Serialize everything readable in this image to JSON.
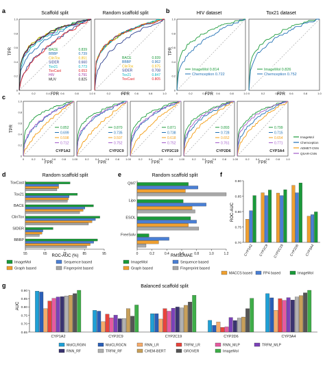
{
  "header_strip": "",
  "panels": {
    "a": {
      "letter": "a",
      "plots": [
        {
          "title": "Scaffold split",
          "xlabel": "FPR",
          "ylabel": "TPR",
          "legend": [
            {
              "name": "BACE",
              "value": "0.839",
              "color": "#1a9a3a"
            },
            {
              "name": "BBBP",
              "value": "0.739",
              "color": "#1f6fb4"
            },
            {
              "name": "ClinTox",
              "value": "0.851",
              "color": "#ecb400"
            },
            {
              "name": "SIDER",
              "value": "0.660",
              "color": "#2d3f8f"
            },
            {
              "name": "Tox21",
              "value": "0.773",
              "color": "#0ab4c2"
            },
            {
              "name": "ToxCast",
              "value": "0.653",
              "color": "#e0242a"
            },
            {
              "name": "HIV",
              "value": "0.791",
              "color": "#9a2ca0"
            },
            {
              "name": "MUV",
              "value": "0.825",
              "color": "#222222"
            }
          ]
        },
        {
          "title": "Random scaffold split",
          "xlabel": "FPR",
          "ylabel": "",
          "legend": [
            {
              "name": "BACE",
              "value": "0.939",
              "color": "#1a9a3a"
            },
            {
              "name": "BBBP",
              "value": "0.962",
              "color": "#1f6fb4"
            },
            {
              "name": "ClinTox",
              "value": "0.975",
              "color": "#ecb400"
            },
            {
              "name": "SIDER",
              "value": "0.708",
              "color": "#2d3f8f"
            },
            {
              "name": "Tox21",
              "value": "0.847",
              "color": "#0ab4c2"
            },
            {
              "name": "ToxCast",
              "value": "0.805",
              "color": "#e0242a"
            }
          ]
        }
      ]
    },
    "b": {
      "letter": "b",
      "plots": [
        {
          "title": "HIV dataset",
          "xlabel": "FPR",
          "ylabel": "TPR",
          "legend": [
            {
              "name": "ImageMol",
              "value": "0.814",
              "color": "#1a9a3a"
            },
            {
              "name": "Chemception",
              "value": "0.722",
              "color": "#1f6fb4"
            }
          ]
        },
        {
          "title": "Tox21 dataset",
          "xlabel": "FPR",
          "ylabel": "",
          "legend": [
            {
              "name": "ImageMol",
              "value": "0.826",
              "color": "#1a9a3a"
            },
            {
              "name": "Chemception",
              "value": "0.752",
              "color": "#1f6fb4"
            }
          ]
        }
      ]
    },
    "c": {
      "letter": "c",
      "ylabel": "TPR",
      "plots": [
        {
          "name": "CYP1A2",
          "xlabel": "FPR",
          "values": [
            "0.852",
            "0.699",
            "0.598",
            "0.712"
          ]
        },
        {
          "name": "CYP2C9",
          "xlabel": "FPR",
          "values": [
            "0.870",
            "0.735",
            "0.597",
            "0.752"
          ]
        },
        {
          "name": "CYP2C19",
          "xlabel": "FPR",
          "values": [
            "0.871",
            "0.738",
            "0.618",
            "0.752"
          ]
        },
        {
          "name": "CYP2D6",
          "xlabel": "FPR",
          "values": [
            "0.893",
            "0.728",
            "0.652",
            "0.761"
          ]
        },
        {
          "name": "CYP3A4",
          "xlabel": "FPR",
          "values": [
            "0.799",
            "0.715",
            "0.654",
            "0.771"
          ]
        }
      ],
      "legend": [
        {
          "name": "ImageMol",
          "color": "#1a9a3a"
        },
        {
          "name": "Chemception",
          "color": "#1f6fb4"
        },
        {
          "name": "ADMET-CNN",
          "color": "#f39c12"
        },
        {
          "name": "QSAR-CNN",
          "color": "#a05ac8"
        }
      ]
    }
  },
  "chart_data": [
    {
      "panel": "d",
      "type": "bar",
      "orientation": "horizontal",
      "title": "Random scaffold split",
      "xlabel": "ROC-AUC (%)",
      "xlim": [
        55,
        100
      ],
      "xticks": [
        "55",
        "65",
        "75",
        "85",
        "95"
      ],
      "categories": [
        "ToxCast",
        "Tox21",
        "BACE",
        "ClinTox",
        "SIDER",
        "BBBP"
      ],
      "series": [
        {
          "name": "ImageMol",
          "color": "#1a9a3a",
          "values": [
            80.5,
            84.7,
            93.9,
            97.5,
            70.8,
            96.2
          ]
        },
        {
          "name": "Sequence based",
          "color": "#4a7fd4",
          "values": [
            74,
            80,
            89,
            95,
            65,
            94
          ]
        },
        {
          "name": "Graph based",
          "color": "#f0a030",
          "values": [
            74,
            79.5,
            88,
            93,
            64.5,
            92
          ]
        },
        {
          "name": "Fingerprint based",
          "color": "#a8a8a8",
          "values": [
            73,
            79,
            86,
            91,
            63,
            90
          ]
        }
      ],
      "legend": [
        "ImageMol",
        "Sequence based",
        "Graph based",
        "Fingerprint based"
      ]
    },
    {
      "panel": "e",
      "type": "bar",
      "orientation": "horizontal",
      "title": "Random scaffold split",
      "xlabel": "RMSE/MAE",
      "xlim": [
        0,
        1.2
      ],
      "xticks": [
        "0",
        "0.2",
        "0.4",
        "0.6",
        "0.8",
        "1.0",
        "1.2"
      ],
      "categories": [
        "QM7",
        "Lipo",
        "ESOL",
        "FreeSolv"
      ],
      "series": [
        {
          "name": "ImageMol",
          "color": "#1a9a3a",
          "values": [
            0.69,
            0.62,
            0.72,
            0.16
          ]
        },
        {
          "name": "Sequence based",
          "color": "#4a7fd4",
          "values": [
            0.82,
            0.93,
            0.8,
            0.43
          ]
        },
        {
          "name": "Graph based",
          "color": "#f0a030",
          "values": [
            0.65,
            0.74,
            0.69,
            0.29
          ]
        },
        {
          "name": "Fingerprint based",
          "color": "#a8a8a8",
          "values": [
            1.2,
            0.78,
            0.83,
            0.12
          ]
        }
      ],
      "legend": [
        "ImageMol",
        "Sequence based",
        "Graph based",
        "Fingerprint based"
      ]
    },
    {
      "panel": "f",
      "type": "bar",
      "ylabel": "ROC-AUC",
      "ylim": [
        0.7,
        0.9
      ],
      "yticks": [
        "0.70",
        "0.75",
        "0.80",
        "0.85",
        "0.90"
      ],
      "categories": [
        "CYP1A2",
        "CYP2C9",
        "CYP2C19",
        "CYP2D6",
        "CYP3A4"
      ],
      "series": [
        {
          "name": "MACCS based",
          "color": "#f0a030",
          "values": [
            0.775,
            0.861,
            0.86,
            0.885,
            0.785
          ]
        },
        {
          "name": "FP4 based",
          "color": "#4a7fd4",
          "values": [
            0.803,
            0.852,
            0.852,
            0.861,
            0.79
          ]
        },
        {
          "name": "ImageMol",
          "color": "#1a9a3a",
          "values": [
            0.852,
            0.87,
            0.871,
            0.893,
            0.799
          ]
        }
      ],
      "legend": [
        "MACCS based",
        "FP4 based",
        "ImageMol"
      ]
    },
    {
      "panel": "g",
      "type": "bar",
      "title": "Balanced scaffold split",
      "ylabel": "AUC",
      "ylim": [
        0.65,
        0.9
      ],
      "yticks": [
        "0.65",
        "0.70",
        "0.75",
        "0.80",
        "0.85",
        "0.90"
      ],
      "categories": [
        "CYP1A2",
        "CYP2C9",
        "CYP2C19",
        "CYP2D6",
        "CYP3A4"
      ],
      "series": [
        {
          "name": "MolCLRGIN",
          "color": "#1fa0d6",
          "values": [
            0.895,
            0.78,
            0.76,
            0.72,
            0.88
          ]
        },
        {
          "name": "MolCLRGCN",
          "color": "#2a5fb8",
          "values": [
            0.89,
            0.775,
            0.76,
            0.69,
            0.855
          ]
        },
        {
          "name": "RNN_LR",
          "color": "#f6ab6a",
          "values": [
            0.79,
            0.712,
            0.728,
            0.71,
            0.78
          ]
        },
        {
          "name": "TRFM_LR",
          "color": "#e8443c",
          "values": [
            0.836,
            0.757,
            0.79,
            0.678,
            0.85
          ]
        },
        {
          "name": "RNN_MLP",
          "color": "#e65aa0",
          "values": [
            0.852,
            0.735,
            0.775,
            0.681,
            0.84
          ]
        },
        {
          "name": "TRFM_MLP",
          "color": "#7b42b8",
          "values": [
            0.86,
            0.751,
            0.793,
            0.737,
            0.856
          ]
        },
        {
          "name": "RNN_RF",
          "color": "#3a3470",
          "values": [
            0.862,
            0.73,
            0.8,
            0.719,
            0.842
          ]
        },
        {
          "name": "TRFM_RF",
          "color": "#b1b1b1",
          "values": [
            0.866,
            0.731,
            0.795,
            0.734,
            0.86
          ]
        },
        {
          "name": "CHEM-BERT",
          "color": "#c8a05a",
          "values": [
            0.87,
            0.79,
            0.81,
            0.74,
            0.868
          ]
        },
        {
          "name": "GROVER",
          "color": "#555555",
          "values": [
            0.88,
            0.745,
            0.83,
            0.79,
            0.885
          ]
        },
        {
          "name": "ImageMol",
          "color": "#3fae49",
          "values": [
            0.9,
            0.812,
            0.87,
            0.852,
            0.9
          ]
        }
      ],
      "legend": [
        "MolCLRGIN",
        "MolCLRGCN",
        "RNN_LR",
        "TRFM_LR",
        "RNN_MLP",
        "TRFM_MLP",
        "RNN_RF",
        "TRFM_RF",
        "CHEM-BERT",
        "GROVER",
        "ImageMol"
      ]
    }
  ]
}
